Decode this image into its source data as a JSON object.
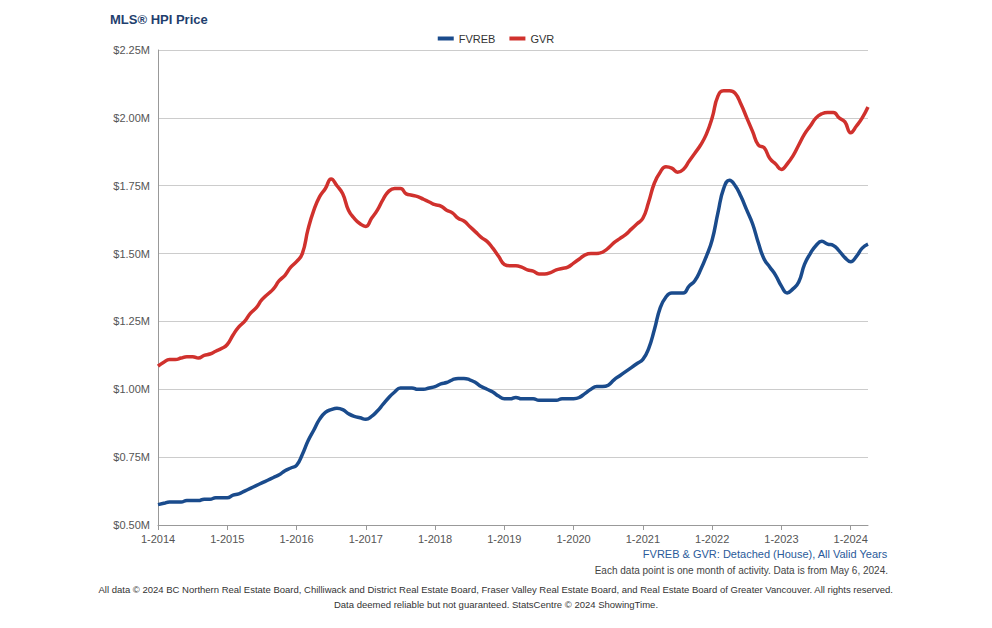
{
  "chart_data": {
    "type": "line",
    "title": "MLS® HPI Price",
    "categories": [
      "1-2014",
      null,
      null,
      null,
      null,
      null,
      null,
      null,
      null,
      null,
      null,
      null,
      "1-2015",
      null,
      null,
      null,
      null,
      null,
      null,
      null,
      null,
      null,
      null,
      null,
      "1-2016",
      null,
      null,
      null,
      null,
      null,
      null,
      null,
      null,
      null,
      null,
      null,
      "1-2017",
      null,
      null,
      null,
      null,
      null,
      null,
      null,
      null,
      null,
      null,
      null,
      "1-2018",
      null,
      null,
      null,
      null,
      null,
      null,
      null,
      null,
      null,
      null,
      null,
      "1-2019",
      null,
      null,
      null,
      null,
      null,
      null,
      null,
      null,
      null,
      null,
      null,
      "1-2020",
      null,
      null,
      null,
      null,
      null,
      null,
      null,
      null,
      null,
      null,
      null,
      "1-2021",
      null,
      null,
      null,
      null,
      null,
      null,
      null,
      null,
      null,
      null,
      null,
      "1-2022",
      null,
      null,
      null,
      null,
      null,
      null,
      null,
      null,
      null,
      null,
      null,
      "1-2023",
      null,
      null,
      null,
      null,
      null,
      null,
      null,
      null,
      null,
      null,
      null,
      "1-2024",
      null,
      null,
      null
    ],
    "series": [
      {
        "name": "FVREB",
        "color": "#1a4b8c",
        "values": [
          0.575,
          0.58,
          0.585,
          0.585,
          0.585,
          0.59,
          0.59,
          0.59,
          0.595,
          0.595,
          0.6,
          0.6,
          0.6,
          0.61,
          0.615,
          0.625,
          0.635,
          0.645,
          0.655,
          0.665,
          0.675,
          0.685,
          0.7,
          0.71,
          0.72,
          0.76,
          0.81,
          0.85,
          0.89,
          0.915,
          0.925,
          0.93,
          0.925,
          0.91,
          0.9,
          0.895,
          0.89,
          0.9,
          0.92,
          0.945,
          0.97,
          0.99,
          1.005,
          1.005,
          1.005,
          1.0,
          1.0,
          1.005,
          1.01,
          1.02,
          1.025,
          1.035,
          1.04,
          1.04,
          1.035,
          1.025,
          1.01,
          1.0,
          0.99,
          0.975,
          0.965,
          0.965,
          0.97,
          0.965,
          0.965,
          0.965,
          0.96,
          0.96,
          0.96,
          0.96,
          0.965,
          0.965,
          0.965,
          0.97,
          0.985,
          1.0,
          1.01,
          1.01,
          1.015,
          1.035,
          1.05,
          1.065,
          1.08,
          1.095,
          1.11,
          1.15,
          1.22,
          1.3,
          1.34,
          1.355,
          1.355,
          1.355,
          1.38,
          1.4,
          1.44,
          1.49,
          1.55,
          1.65,
          1.74,
          1.77,
          1.75,
          1.71,
          1.66,
          1.61,
          1.54,
          1.48,
          1.45,
          1.42,
          1.38,
          1.355,
          1.37,
          1.395,
          1.46,
          1.5,
          1.53,
          1.545,
          1.535,
          1.53,
          1.51,
          1.485,
          1.47,
          1.49,
          1.52,
          1.535
        ]
      },
      {
        "name": "GVR",
        "color": "#d0312d",
        "values": [
          1.085,
          1.1,
          1.11,
          1.11,
          1.115,
          1.12,
          1.12,
          1.115,
          1.125,
          1.13,
          1.14,
          1.15,
          1.165,
          1.2,
          1.23,
          1.25,
          1.28,
          1.3,
          1.33,
          1.35,
          1.37,
          1.4,
          1.42,
          1.45,
          1.47,
          1.5,
          1.59,
          1.66,
          1.71,
          1.74,
          1.775,
          1.75,
          1.72,
          1.66,
          1.63,
          1.61,
          1.6,
          1.63,
          1.66,
          1.7,
          1.73,
          1.74,
          1.74,
          1.72,
          1.715,
          1.71,
          1.7,
          1.69,
          1.68,
          1.675,
          1.66,
          1.65,
          1.63,
          1.62,
          1.6,
          1.58,
          1.56,
          1.545,
          1.52,
          1.49,
          1.46,
          1.455,
          1.455,
          1.45,
          1.44,
          1.435,
          1.425,
          1.425,
          1.43,
          1.44,
          1.445,
          1.45,
          1.465,
          1.48,
          1.495,
          1.5,
          1.5,
          1.505,
          1.52,
          1.54,
          1.555,
          1.57,
          1.59,
          1.61,
          1.63,
          1.69,
          1.76,
          1.8,
          1.82,
          1.815,
          1.8,
          1.81,
          1.84,
          1.87,
          1.9,
          1.94,
          2.0,
          2.08,
          2.1,
          2.1,
          2.09,
          2.05,
          2.0,
          1.95,
          1.9,
          1.89,
          1.85,
          1.83,
          1.81,
          1.83,
          1.86,
          1.9,
          1.94,
          1.97,
          2.0,
          2.015,
          2.02,
          2.02,
          2.0,
          1.985,
          1.945,
          1.97,
          2.0,
          2.04
        ]
      }
    ],
    "ylim": [
      0.5,
      2.25
    ],
    "yticks": [
      {
        "value": 0.5,
        "label": "$0.50M"
      },
      {
        "value": 0.75,
        "label": "$0.75M"
      },
      {
        "value": 1.0,
        "label": "$1.00M"
      },
      {
        "value": 1.25,
        "label": "$1.25M"
      },
      {
        "value": 1.5,
        "label": "$1.50M"
      },
      {
        "value": 1.75,
        "label": "$1.75M"
      },
      {
        "value": 2.0,
        "label": "$2.00M"
      },
      {
        "value": 2.25,
        "label": "$2.25M"
      }
    ],
    "grid": true,
    "legend": "top",
    "annotations": [
      "FVREB & GVR: Detached (House), All Valid Years",
      "Each data point is one month of activity. Data is from May 6, 2024.",
      "All data © 2024 BC Northern Real Estate Board, Chilliwack and District Real Estate Board, Fraser Valley Real Estate Board, and Real Estate Board of Greater Vancouver. All rights reserved.",
      "Data deemed reliable but not guaranteed. StatsCentre © 2024 ShowingTime."
    ]
  }
}
